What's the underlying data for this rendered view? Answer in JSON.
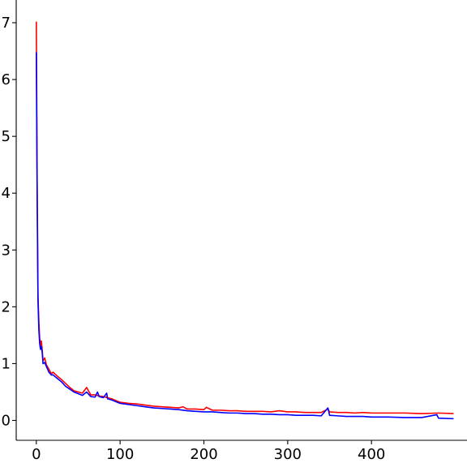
{
  "chart_data": {
    "type": "line",
    "title": "",
    "xlabel": "",
    "ylabel": "",
    "xlim": [
      -24,
      514
    ],
    "ylim": [
      -0.35,
      7.4
    ],
    "xticks": [
      0,
      100,
      200,
      300,
      400
    ],
    "yticks": [
      0,
      1,
      2,
      3,
      4,
      5,
      6,
      7
    ],
    "xtick_labels": [
      "0",
      "100",
      "200",
      "300",
      "400"
    ],
    "ytick_labels": [
      "0",
      "1",
      "2",
      "3",
      "4",
      "5",
      "6",
      "7"
    ],
    "grid": false,
    "legend": "none",
    "series": [
      {
        "color": "#ff0000",
        "x": [
          0,
          1,
          2,
          3,
          4,
          5,
          6,
          7,
          8,
          10,
          12,
          15,
          18,
          20,
          25,
          30,
          35,
          40,
          45,
          50,
          55,
          60,
          65,
          70,
          75,
          80,
          85,
          90,
          95,
          100,
          110,
          120,
          130,
          140,
          150,
          160,
          170,
          175,
          180,
          190,
          200,
          203,
          210,
          220,
          230,
          240,
          250,
          260,
          270,
          280,
          290,
          300,
          310,
          320,
          330,
          340,
          348,
          350,
          360,
          370,
          380,
          390,
          400,
          420,
          440,
          460,
          480,
          498
        ],
        "values": [
          7.02,
          4.2,
          2.2,
          1.75,
          1.45,
          1.3,
          1.4,
          1.25,
          1.05,
          1.1,
          0.98,
          0.9,
          0.82,
          0.85,
          0.78,
          0.72,
          0.65,
          0.58,
          0.52,
          0.5,
          0.48,
          0.58,
          0.45,
          0.45,
          0.43,
          0.42,
          0.4,
          0.38,
          0.35,
          0.32,
          0.3,
          0.29,
          0.27,
          0.25,
          0.24,
          0.23,
          0.22,
          0.24,
          0.2,
          0.2,
          0.19,
          0.23,
          0.18,
          0.18,
          0.17,
          0.17,
          0.16,
          0.16,
          0.16,
          0.15,
          0.17,
          0.15,
          0.15,
          0.14,
          0.14,
          0.14,
          0.2,
          0.15,
          0.14,
          0.14,
          0.13,
          0.14,
          0.13,
          0.13,
          0.13,
          0.12,
          0.13,
          0.12
        ]
      },
      {
        "color": "#0000ff",
        "x": [
          0,
          1,
          2,
          3,
          4,
          5,
          6,
          7,
          8,
          10,
          12,
          15,
          18,
          20,
          25,
          30,
          35,
          40,
          45,
          50,
          55,
          60,
          65,
          70,
          73,
          75,
          80,
          84,
          85,
          90,
          95,
          100,
          110,
          120,
          130,
          140,
          150,
          160,
          170,
          180,
          190,
          200,
          210,
          220,
          230,
          240,
          250,
          260,
          270,
          280,
          290,
          300,
          310,
          320,
          330,
          340,
          348,
          350,
          360,
          370,
          380,
          390,
          400,
          420,
          440,
          460,
          478,
          480,
          498
        ],
        "values": [
          6.48,
          3.9,
          2.1,
          1.6,
          1.35,
          1.25,
          1.3,
          1.2,
          1.0,
          1.02,
          0.95,
          0.85,
          0.8,
          0.8,
          0.74,
          0.68,
          0.6,
          0.55,
          0.5,
          0.47,
          0.44,
          0.5,
          0.42,
          0.41,
          0.5,
          0.42,
          0.4,
          0.48,
          0.38,
          0.36,
          0.33,
          0.3,
          0.28,
          0.26,
          0.24,
          0.22,
          0.21,
          0.2,
          0.19,
          0.17,
          0.16,
          0.15,
          0.15,
          0.14,
          0.13,
          0.13,
          0.12,
          0.12,
          0.11,
          0.11,
          0.1,
          0.1,
          0.09,
          0.09,
          0.09,
          0.08,
          0.22,
          0.09,
          0.08,
          0.07,
          0.07,
          0.07,
          0.06,
          0.06,
          0.05,
          0.05,
          0.1,
          0.04,
          0.03
        ]
      }
    ]
  }
}
